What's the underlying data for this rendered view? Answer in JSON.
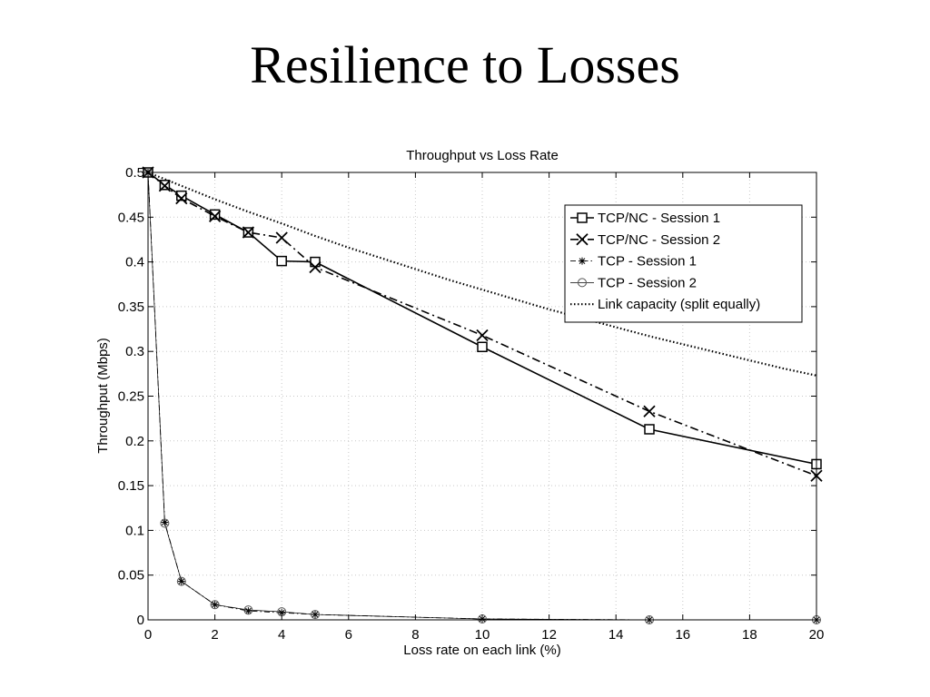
{
  "slide": {
    "title": "Resilience to Losses"
  },
  "chart_data": {
    "type": "line",
    "title": "Throughput vs Loss Rate",
    "xlabel": "Loss rate on each link (%)",
    "ylabel": "Throughput (Mbps)",
    "xlim": [
      0,
      20
    ],
    "ylim": [
      0,
      0.5
    ],
    "x_ticks": [
      0,
      2,
      4,
      6,
      8,
      10,
      12,
      14,
      16,
      18,
      20
    ],
    "y_ticks": [
      0,
      0.05,
      0.1,
      0.15,
      0.2,
      0.25,
      0.3,
      0.35,
      0.4,
      0.45,
      0.5
    ],
    "x_tick_labels": [
      "0",
      "2",
      "4",
      "6",
      "8",
      "10",
      "12",
      "14",
      "16",
      "18",
      "20"
    ],
    "y_tick_labels": [
      "0",
      "0.05",
      "0.1",
      "0.15",
      "0.2",
      "0.25",
      "0.3",
      "0.35",
      "0.4",
      "0.45",
      "0.5"
    ],
    "grid": true,
    "legend_position": "top-right",
    "series": [
      {
        "name": "TCP/NC - Session 1",
        "marker": "square",
        "line_style": "solid",
        "x": [
          0,
          0.5,
          1,
          2,
          3,
          4,
          5,
          10,
          15,
          20
        ],
        "y": [
          0.5,
          0.486,
          0.474,
          0.453,
          0.433,
          0.401,
          0.4,
          0.305,
          0.213,
          0.174
        ]
      },
      {
        "name": "TCP/NC - Session 2",
        "marker": "x",
        "line_style": "dashdot",
        "x": [
          0,
          0.5,
          1,
          2,
          3,
          4,
          5,
          10,
          15,
          20
        ],
        "y": [
          0.5,
          0.485,
          0.471,
          0.451,
          0.433,
          0.427,
          0.394,
          0.318,
          0.233,
          0.161
        ]
      },
      {
        "name": "TCP - Session 1",
        "marker": "asterisk",
        "line_style": "dashdot-thin",
        "x": [
          0,
          0.5,
          1,
          2,
          3,
          4,
          5,
          10,
          15,
          20
        ],
        "y": [
          0.5,
          0.109,
          0.043,
          0.017,
          0.01,
          0.008,
          0.006,
          0.001,
          0.0,
          0.0
        ]
      },
      {
        "name": "TCP - Session 2",
        "marker": "circle",
        "line_style": "solid-thin",
        "x": [
          0,
          0.5,
          1,
          2,
          3,
          4,
          5,
          10,
          15,
          20
        ],
        "y": [
          0.5,
          0.108,
          0.043,
          0.017,
          0.011,
          0.009,
          0.006,
          0.001,
          0.0,
          0.0
        ]
      },
      {
        "name": "Link capacity (split equally)",
        "marker": "none",
        "line_style": "dotted",
        "x": [
          0,
          1,
          2,
          3,
          4,
          5,
          6,
          7,
          8,
          9,
          10,
          11,
          12,
          13,
          14,
          15,
          16,
          17,
          18,
          19,
          20
        ],
        "y": [
          0.5,
          0.485,
          0.47,
          0.456,
          0.443,
          0.429,
          0.416,
          0.404,
          0.392,
          0.38,
          0.369,
          0.358,
          0.347,
          0.337,
          0.327,
          0.317,
          0.308,
          0.299,
          0.29,
          0.281,
          0.273
        ]
      }
    ],
    "colors": {
      "line": "#000000",
      "grid": "#c8c8c8",
      "background": "#ffffff"
    }
  }
}
